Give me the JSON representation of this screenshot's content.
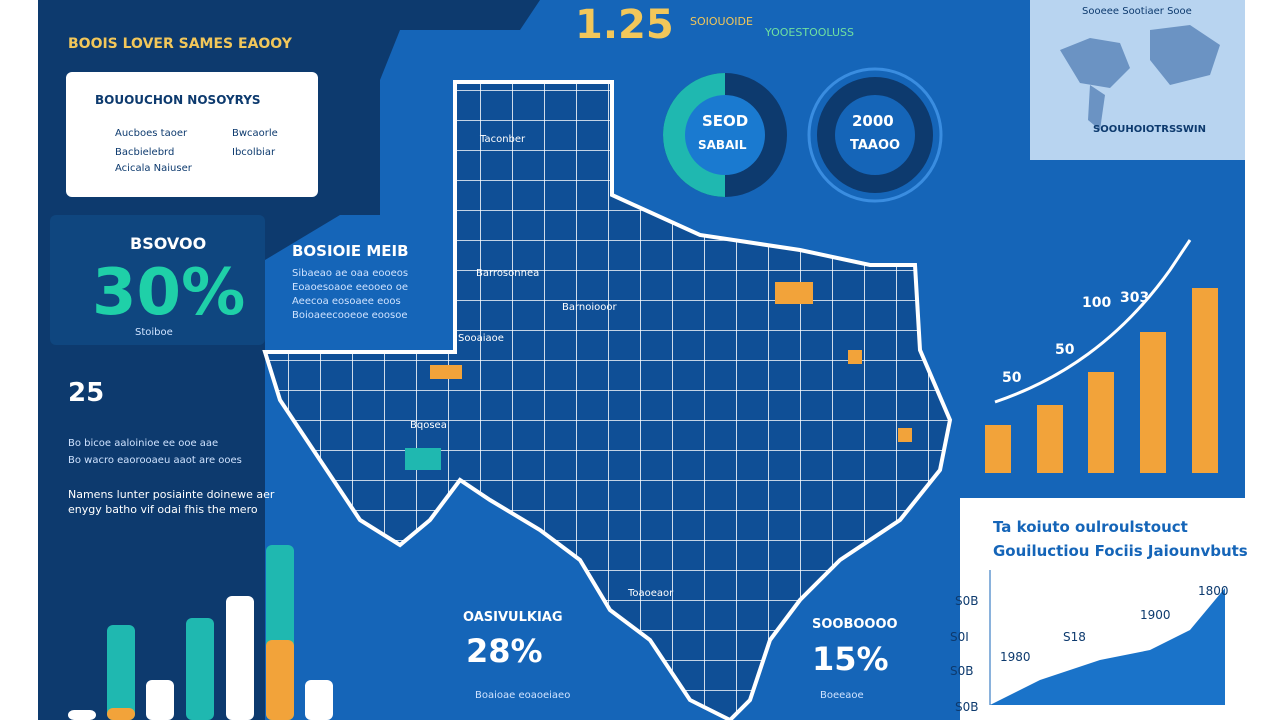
{
  "header": {
    "title": "BOOIS LOVER SAMES EAOOY",
    "stat": "1.25",
    "stat_note_1": "SOIOUOIDE",
    "stat_note_2": "YOOESTOOLUSS"
  },
  "legend_card": {
    "title": "BOUOUCHON NOSOYRYS",
    "items": [
      "Aucboes taoer",
      "Bacbielebrd",
      "Acicala Naiuser",
      "Bwcaorle",
      "Ibcolbiar"
    ]
  },
  "left_stat": {
    "label": "BSOVOO",
    "value": "30%",
    "note": "Stoiboe"
  },
  "left_block": {
    "number": "25",
    "lines": [
      "Bo bicoe aaloinioe ee ooe aae",
      "Bo wacro eaorooaeu aaot are ooes"
    ],
    "paragraph": [
      "Namens lunter posiainte doinewe aer",
      "enygy batho vif odai fhis the mero"
    ]
  },
  "middle_block": {
    "title": "BOSIOIE MEIB",
    "lines": [
      "Sibaeao ae oaa eooeos",
      "Eoaoesoaoe eeooeo oe",
      "Aeecoa eosoaee eoos",
      "Boioaeecooeoe eoosoe"
    ]
  },
  "donuts": [
    {
      "top": "SEOD",
      "bottom": "SABAIL"
    },
    {
      "top": "2000",
      "bottom": "TAAOO"
    }
  ],
  "world_card": {
    "caption": "SOOUHOIOTRSSWIN",
    "top": "Sooeee Sootiaer Sooe"
  },
  "right_chart": {
    "labels": [
      "100",
      "303",
      "50",
      "50"
    ]
  },
  "map_labels": [
    "Taconber",
    "Barrosonnea",
    "Barnoiooor",
    "Sooaiaoe",
    "Bqosea",
    "Toaoeaor"
  ],
  "bottom_stats": [
    {
      "label": "OASIVULKIAG",
      "value": "28%",
      "note": "Boaioae eoaoeiaeo"
    },
    {
      "label": "SOOBOOOO",
      "value": "15%",
      "note": "Boeeaoe"
    }
  ],
  "trend_card": {
    "title_1": "Ta koiuto oulroulstouct",
    "title_2": "Gouiluctiou Fociis Jaiounvbuts",
    "y_labels": [
      "S0B",
      "S0I",
      "S0B",
      "S0B"
    ],
    "point_labels": [
      "1800",
      "1900",
      "S18",
      "1980"
    ]
  }
}
